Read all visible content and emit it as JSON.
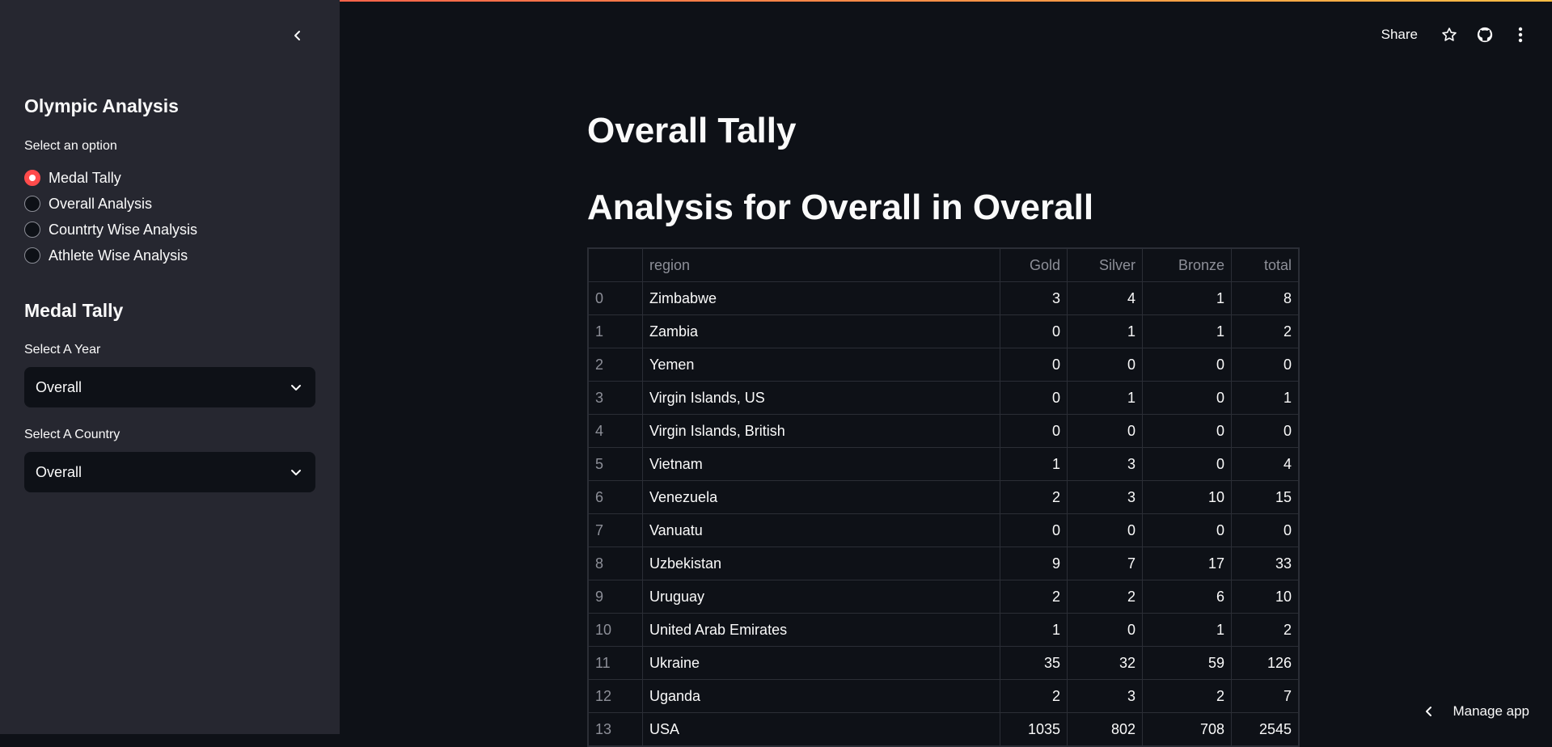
{
  "sidebar": {
    "title": "Olympic Analysis",
    "radio_label": "Select an option",
    "options": [
      "Medal Tally",
      "Overall Analysis",
      "Countrty Wise Analysis",
      "Athlete Wise Analysis"
    ],
    "selected_option": "Medal Tally",
    "section_title": "Medal Tally",
    "year_label": "Select A Year",
    "year_value": "Overall",
    "country_label": "Select A Country",
    "country_value": "Overall"
  },
  "header": {
    "share_label": "Share",
    "icons": [
      "star-icon",
      "github-icon",
      "more-vertical-icon"
    ]
  },
  "main": {
    "title": "Overall Tally",
    "subtitle": "Analysis for Overall in Overall",
    "table": {
      "columns": [
        "",
        "region",
        "Gold",
        "Silver",
        "Bronze",
        "total"
      ],
      "rows": [
        [
          "0",
          "Zimbabwe",
          "3",
          "4",
          "1",
          "8"
        ],
        [
          "1",
          "Zambia",
          "0",
          "1",
          "1",
          "2"
        ],
        [
          "2",
          "Yemen",
          "0",
          "0",
          "0",
          "0"
        ],
        [
          "3",
          "Virgin Islands, US",
          "0",
          "1",
          "0",
          "1"
        ],
        [
          "4",
          "Virgin Islands, British",
          "0",
          "0",
          "0",
          "0"
        ],
        [
          "5",
          "Vietnam",
          "1",
          "3",
          "0",
          "4"
        ],
        [
          "6",
          "Venezuela",
          "2",
          "3",
          "10",
          "15"
        ],
        [
          "7",
          "Vanuatu",
          "0",
          "0",
          "0",
          "0"
        ],
        [
          "8",
          "Uzbekistan",
          "9",
          "7",
          "17",
          "33"
        ],
        [
          "9",
          "Uruguay",
          "2",
          "2",
          "6",
          "10"
        ],
        [
          "10",
          "United Arab Emirates",
          "1",
          "0",
          "1",
          "2"
        ],
        [
          "11",
          "Ukraine",
          "35",
          "32",
          "59",
          "126"
        ],
        [
          "12",
          "Uganda",
          "2",
          "3",
          "2",
          "7"
        ],
        [
          "13",
          "USA",
          "1035",
          "802",
          "708",
          "2545"
        ]
      ]
    }
  },
  "footer": {
    "manage_label": "Manage app"
  },
  "colors": {
    "accent": "#ff4b4b",
    "background": "#0e1117",
    "sidebar_background": "#262730"
  }
}
